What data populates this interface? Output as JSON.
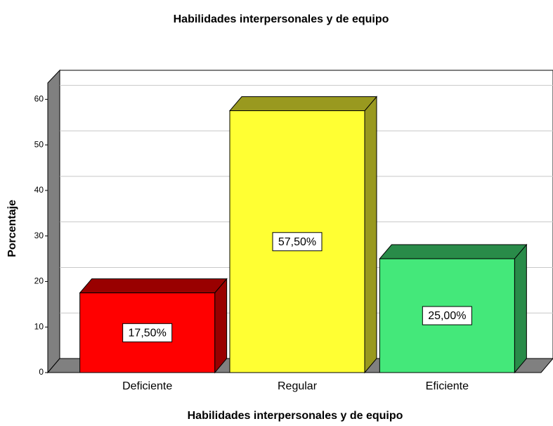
{
  "chart_data": {
    "type": "bar3d",
    "title": "Habilidades interpersonales y de equipo",
    "x_label": "Habilidades interpersonales y de equipo",
    "y_label": "Porcentaje",
    "categories": [
      "Deficiente",
      "Regular",
      "Eficiente"
    ],
    "values": [
      17.5,
      57.5,
      25
    ],
    "value_labels": [
      "17,50%",
      "57,50%",
      "25,00%"
    ],
    "colors": [
      "#ff0000",
      "#ffff33",
      "#44e87a"
    ],
    "ylim": [
      0,
      63.6
    ],
    "yticks": [
      0,
      10,
      20,
      30,
      40,
      50,
      60
    ],
    "grid": true
  }
}
